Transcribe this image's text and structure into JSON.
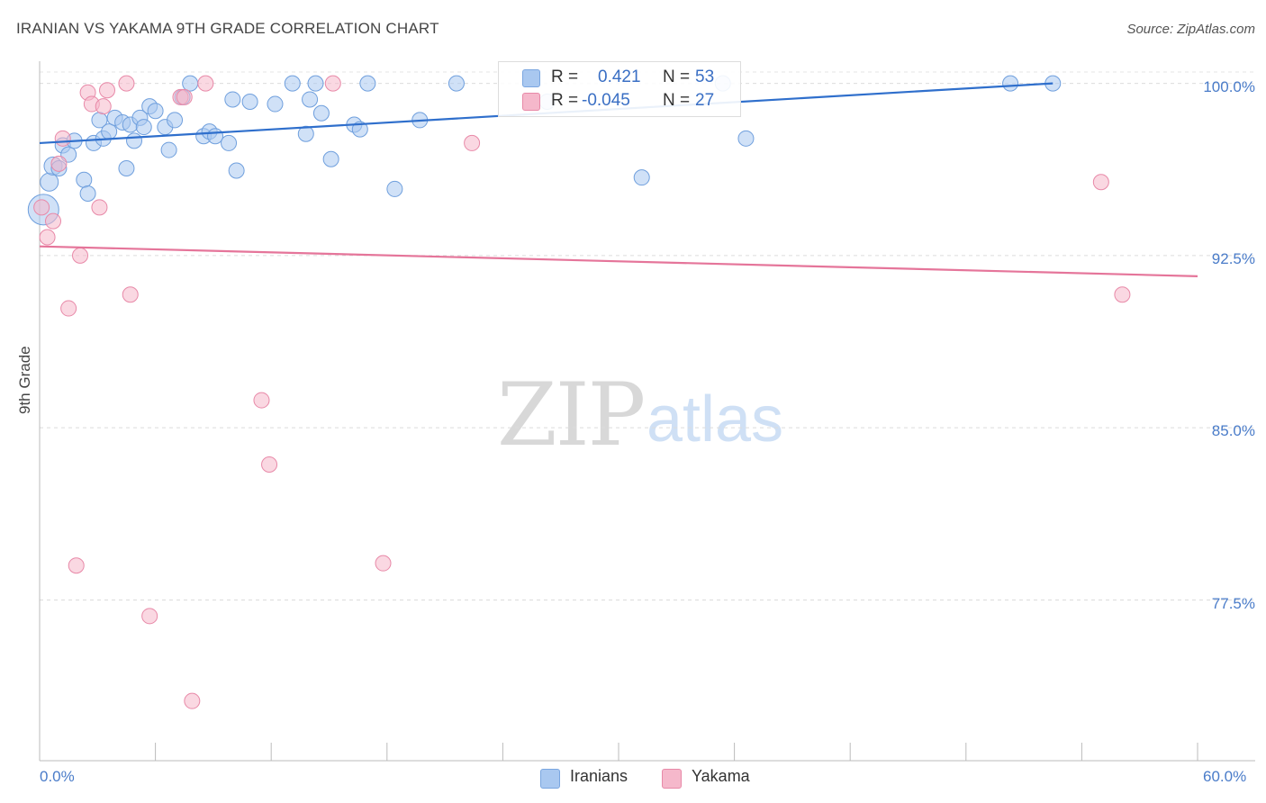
{
  "title": "IRANIAN VS YAKAMA 9TH GRADE CORRELATION CHART",
  "source": "Source: ZipAtlas.com",
  "watermark": {
    "zip": "ZIP",
    "atlas": "atlas"
  },
  "legend": {
    "rows": [
      {
        "r_label": "R =",
        "r_value": "0.421",
        "n_label": "N =",
        "n_value": "53",
        "color": "#a9c8f0"
      },
      {
        "r_label": "R =",
        "r_value": "-0.045",
        "n_label": "N =",
        "n_value": "27",
        "color": "#f5b8cb"
      }
    ]
  },
  "bottom_legend": {
    "iranians": "Iranians",
    "yakama": "Yakama"
  },
  "chart_data": {
    "type": "scatter",
    "title": "IRANIAN VS YAKAMA 9TH GRADE CORRELATION CHART",
    "xlabel": "",
    "ylabel": "9th Grade",
    "xlim": [
      0,
      60
    ],
    "ylim": [
      70.5,
      101.2
    ],
    "x_tick_labels": [
      "0.0%",
      "60.0%"
    ],
    "y_ticks": [
      100.0,
      92.5,
      85.0,
      77.5
    ],
    "y_tick_labels": [
      "100.0%",
      "92.5%",
      "85.0%",
      "77.5%"
    ],
    "grid": true,
    "legend_position": "top-center",
    "series": [
      {
        "name": "Iranians",
        "color": "#a9c8f0",
        "stroke": "#6f9fdd",
        "trend": {
          "x": [
            0,
            52.5
          ],
          "y": [
            97.4,
            100.0
          ],
          "color": "#2f6fcc"
        },
        "points": [
          [
            0.2,
            94.5
          ],
          [
            0.5,
            95.7
          ],
          [
            0.7,
            96.4
          ],
          [
            1.0,
            96.3
          ],
          [
            1.2,
            97.3
          ],
          [
            1.5,
            96.9
          ],
          [
            1.8,
            97.5
          ],
          [
            2.3,
            95.8
          ],
          [
            2.5,
            95.2
          ],
          [
            2.8,
            97.4
          ],
          [
            3.1,
            98.4
          ],
          [
            3.3,
            97.6
          ],
          [
            3.6,
            97.9
          ],
          [
            3.9,
            98.5
          ],
          [
            4.3,
            98.3
          ],
          [
            4.5,
            96.3
          ],
          [
            4.7,
            98.2
          ],
          [
            4.9,
            97.5
          ],
          [
            5.2,
            98.5
          ],
          [
            5.4,
            98.1
          ],
          [
            5.7,
            99.0
          ],
          [
            6.0,
            98.8
          ],
          [
            6.5,
            98.1
          ],
          [
            6.7,
            97.1
          ],
          [
            7.0,
            98.4
          ],
          [
            7.4,
            99.4
          ],
          [
            7.8,
            100.0
          ],
          [
            8.5,
            97.7
          ],
          [
            8.8,
            97.9
          ],
          [
            9.1,
            97.7
          ],
          [
            9.8,
            97.4
          ],
          [
            10.0,
            99.3
          ],
          [
            10.2,
            96.2
          ],
          [
            10.9,
            99.2
          ],
          [
            12.2,
            99.1
          ],
          [
            13.1,
            100.0
          ],
          [
            13.8,
            97.8
          ],
          [
            14.0,
            99.3
          ],
          [
            14.3,
            100.0
          ],
          [
            14.6,
            98.7
          ],
          [
            15.1,
            96.7
          ],
          [
            16.3,
            98.2
          ],
          [
            16.6,
            98.0
          ],
          [
            17.0,
            100.0
          ],
          [
            18.4,
            95.4
          ],
          [
            19.7,
            98.4
          ],
          [
            21.6,
            100.0
          ],
          [
            26.3,
            99.2
          ],
          [
            31.2,
            95.9
          ],
          [
            35.4,
            100.0
          ],
          [
            36.6,
            97.6
          ],
          [
            50.3,
            100.0
          ],
          [
            52.5,
            100.0
          ]
        ]
      },
      {
        "name": "Yakama",
        "color": "#f5b8cb",
        "stroke": "#e889a8",
        "trend": {
          "x": [
            0,
            60
          ],
          "y": [
            92.9,
            91.6
          ],
          "color": "#e5759a"
        },
        "points": [
          [
            0.1,
            94.6
          ],
          [
            0.4,
            93.3
          ],
          [
            0.7,
            94.0
          ],
          [
            1.0,
            96.5
          ],
          [
            1.2,
            97.6
          ],
          [
            1.5,
            90.2
          ],
          [
            1.9,
            79.0
          ],
          [
            2.1,
            92.5
          ],
          [
            2.5,
            99.6
          ],
          [
            2.7,
            99.1
          ],
          [
            3.1,
            94.6
          ],
          [
            3.3,
            99.0
          ],
          [
            3.5,
            99.7
          ],
          [
            4.5,
            100.0
          ],
          [
            4.7,
            90.8
          ],
          [
            5.7,
            76.8
          ],
          [
            7.3,
            99.4
          ],
          [
            7.5,
            99.4
          ],
          [
            7.9,
            73.1
          ],
          [
            8.6,
            100.0
          ],
          [
            11.5,
            86.2
          ],
          [
            11.9,
            83.4
          ],
          [
            15.2,
            100.0
          ],
          [
            17.8,
            79.1
          ],
          [
            22.4,
            97.4
          ],
          [
            55.0,
            95.7
          ],
          [
            56.1,
            90.8
          ]
        ]
      }
    ]
  }
}
